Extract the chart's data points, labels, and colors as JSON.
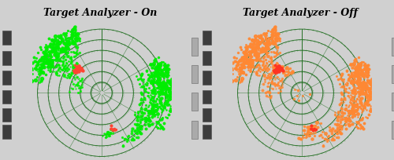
{
  "title_on": "Target Analyzer - On",
  "title_off": "Target Analyzer - Off",
  "title_fontsize": 9,
  "title_fontstyle": "italic",
  "title_fontweight": "bold",
  "figure_bg": "#d0d0d0",
  "radar_bg": "#000000",
  "ring_color": "#1a6b1a",
  "ring_linewidth": 0.6,
  "num_rings": 6,
  "spoke_color": "#1a6b1a",
  "center_dot_color": "#cccccc",
  "on_clutter_color": "#00ee00",
  "on_target_color": "#ff4433",
  "off_clutter_color": "#ff8833",
  "off_target_color": "#ff3322",
  "side_panel_bg": "#c8c8c8",
  "side_panel_dark": "#404040"
}
